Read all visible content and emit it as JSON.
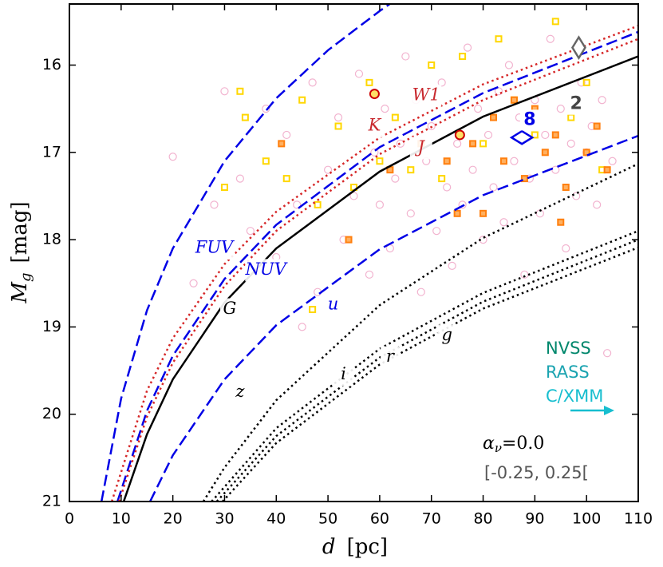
{
  "chart_data": {
    "type": "scatter",
    "xlabel": {
      "symbol": "d",
      "unit": "[pc]"
    },
    "ylabel": {
      "symbol": "M",
      "subscript": "g",
      "unit": "[mag]"
    },
    "xlim": [
      0,
      110
    ],
    "xticks": [
      0,
      10,
      20,
      30,
      40,
      50,
      60,
      70,
      80,
      90,
      100,
      110
    ],
    "ylim": [
      21,
      15.3
    ],
    "yticks": [
      16,
      17,
      18,
      19,
      20,
      21
    ],
    "points": [
      {
        "marker": "circle",
        "color": "#f2b3cf",
        "x": [
          20,
          24,
          28,
          30,
          33,
          35,
          38,
          40,
          42,
          44,
          45,
          47,
          48,
          50,
          52,
          53,
          55,
          56,
          58,
          59,
          60,
          61,
          62,
          63,
          64,
          65,
          66,
          67,
          68,
          69,
          70,
          71,
          72,
          73,
          74,
          75,
          76,
          77,
          78,
          79,
          80,
          81,
          82,
          83,
          84,
          85,
          86,
          87,
          88,
          89,
          90,
          91,
          92,
          93,
          94,
          95,
          96,
          97,
          98,
          99,
          100,
          101,
          102,
          103,
          104,
          105
        ],
        "values": [
          17.05,
          18.5,
          17.6,
          16.3,
          17.3,
          17.9,
          16.5,
          18.2,
          16.8,
          17.6,
          19.0,
          16.2,
          18.6,
          17.2,
          16.6,
          18.0,
          17.5,
          16.1,
          18.4,
          17.0,
          17.6,
          16.5,
          18.1,
          17.3,
          16.9,
          15.9,
          17.7,
          16.4,
          18.6,
          17.1,
          16.7,
          17.9,
          16.2,
          17.4,
          18.3,
          16.9,
          17.6,
          15.8,
          17.2,
          16.5,
          18.0,
          16.8,
          17.4,
          16.3,
          17.8,
          16.0,
          17.1,
          16.6,
          18.4,
          17.3,
          16.4,
          17.7,
          16.8,
          15.7,
          17.2,
          16.5,
          18.1,
          16.9,
          17.5,
          16.2,
          17.0,
          16.7,
          17.6,
          16.4,
          19.3,
          17.1
        ]
      },
      {
        "marker": "square",
        "color": "#ffd700",
        "x": [
          33,
          34,
          30,
          38,
          42,
          45,
          48,
          52,
          55,
          58,
          60,
          63,
          66,
          70,
          72,
          76,
          80,
          83,
          86,
          90,
          94,
          97,
          100,
          103,
          47
        ],
        "values": [
          16.3,
          16.6,
          17.4,
          17.1,
          17.3,
          16.4,
          17.6,
          16.7,
          17.4,
          16.2,
          17.1,
          16.6,
          17.2,
          16.0,
          17.3,
          15.9,
          16.9,
          15.7,
          16.4,
          16.8,
          15.5,
          16.6,
          16.2,
          17.2,
          18.8
        ]
      },
      {
        "marker": "square",
        "color": "#ff7f0e",
        "x": [
          41,
          54,
          62,
          68,
          73,
          75,
          78,
          80,
          82,
          84,
          86,
          88,
          90,
          92,
          94,
          96,
          98,
          100,
          102,
          104,
          95
        ],
        "values": [
          16.9,
          18.0,
          17.2,
          16.9,
          17.1,
          17.7,
          16.9,
          17.7,
          16.6,
          17.1,
          16.4,
          17.3,
          16.5,
          17.0,
          16.8,
          17.4,
          16.5,
          17.0,
          16.7,
          17.2,
          17.8
        ]
      }
    ],
    "series": [
      {
        "name": "FUV",
        "color": "#0000e6",
        "style": "dashed",
        "x": [
          6.2,
          10,
          15,
          20,
          30,
          40,
          50,
          60,
          62.2
        ],
        "values": [
          21,
          19.82,
          18.81,
          18.1,
          17.1,
          16.38,
          15.83,
          15.38,
          15.29
        ]
      },
      {
        "name": "NUV",
        "color": "#0000e6",
        "style": "dashed",
        "x": [
          9.3,
          15,
          20,
          30,
          40,
          60,
          80,
          110
        ],
        "values": [
          21,
          19.96,
          19.33,
          18.45,
          17.83,
          16.94,
          16.32,
          15.62
        ]
      },
      {
        "name": "u",
        "color": "#0000e6",
        "style": "dashed",
        "x": [
          15.6,
          20,
          30,
          40,
          60,
          80,
          110
        ],
        "values": [
          21,
          20.47,
          19.6,
          18.98,
          18.11,
          17.49,
          16.81
        ]
      },
      {
        "name": "W1",
        "color": "#d62728",
        "style": "dotted",
        "x": [
          8.2,
          15,
          20,
          30,
          40,
          60,
          80,
          110
        ],
        "values": [
          21,
          19.73,
          19.13,
          18.28,
          17.68,
          16.83,
          16.22,
          15.55
        ]
      },
      {
        "name": "K",
        "color": "#d62728",
        "style": "dotted",
        "x": [
          9.6,
          15,
          20,
          30,
          40,
          60,
          80,
          110
        ],
        "values": [
          21,
          20.03,
          19.41,
          18.53,
          17.9,
          17.02,
          16.4,
          15.7
        ]
      },
      {
        "name": "G",
        "color": "#000000",
        "style": "solid",
        "x": [
          10.5,
          15,
          20,
          30,
          40,
          60,
          80,
          110
        ],
        "values": [
          21,
          20.23,
          19.6,
          18.72,
          18.1,
          17.22,
          16.59,
          15.9
        ]
      },
      {
        "name": "z",
        "color": "#000000",
        "style": "dotted",
        "x": [
          25.9,
          30,
          40,
          60,
          80,
          110
        ],
        "values": [
          21,
          20.61,
          19.84,
          18.75,
          17.98,
          17.13
        ]
      },
      {
        "name": "i",
        "color": "#000000",
        "style": "dotted",
        "x": [
          29.6,
          40,
          60,
          80,
          110
        ],
        "values": [
          21,
          20.33,
          19.43,
          18.79,
          18.09
        ]
      },
      {
        "name": "r",
        "color": "#000000",
        "style": "dotted",
        "x": [
          28.5,
          40,
          60,
          80,
          110
        ],
        "values": [
          21,
          20.25,
          19.35,
          18.71,
          18.0
        ]
      },
      {
        "name": "g",
        "color": "#000000",
        "style": "dotted",
        "x": [
          27.5,
          40,
          60,
          80,
          110
        ],
        "values": [
          21,
          20.16,
          19.25,
          18.61,
          17.9
        ]
      }
    ],
    "curve_note": "J",
    "specials": [
      {
        "marker": "diamond",
        "color": "#666666",
        "x": 98.5,
        "y": 15.8
      },
      {
        "marker": "diamond",
        "color": "#0000e6",
        "x": 87.5,
        "y": 16.83
      },
      {
        "marker": "circle",
        "color": "#cc0000",
        "x": 59,
        "y": 16.33
      },
      {
        "marker": "circle",
        "color": "#cc0000",
        "x": 75.5,
        "y": 16.8
      }
    ],
    "number_labels": [
      "2",
      "8"
    ],
    "surveys": [
      "NVSS",
      "RASS",
      "C/XMM"
    ],
    "alpha": {
      "symbol": "α",
      "subscript": "ν",
      "rest": "=0.0"
    },
    "alpha_range": "[-0.25, 0.25["
  }
}
